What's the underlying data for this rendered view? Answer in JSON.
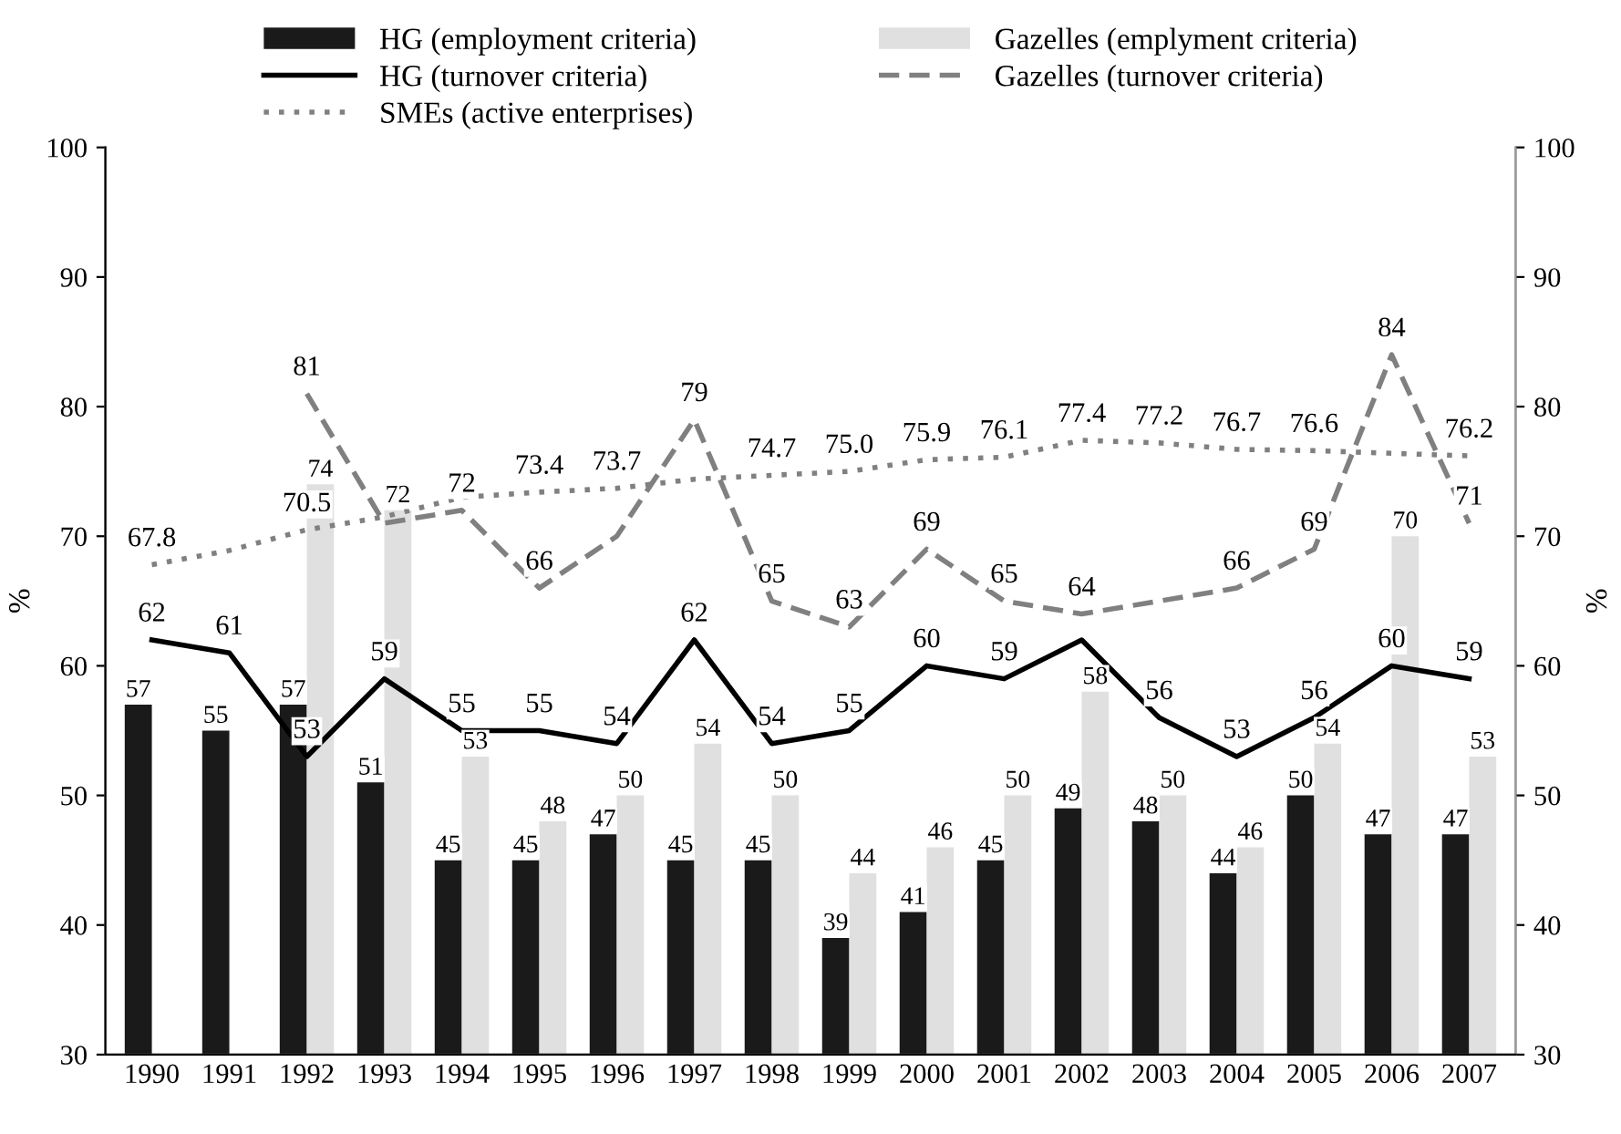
{
  "chart_data": {
    "type": "bar",
    "categories": [
      "1990",
      "1991",
      "1992",
      "1993",
      "1994",
      "1995",
      "1996",
      "1997",
      "1998",
      "1999",
      "2000",
      "2001",
      "2002",
      "2003",
      "2004",
      "2005",
      "2006",
      "2007"
    ],
    "series": [
      {
        "name": "HG (employment criteria)",
        "color": "#1a1a1a",
        "values": [
          57,
          55,
          57,
          51,
          45,
          45,
          47,
          45,
          45,
          39,
          41,
          45,
          49,
          48,
          44,
          50,
          47,
          47
        ],
        "value_labels": [
          "57",
          "55",
          "57",
          "51",
          "45",
          "45",
          "47",
          "45",
          "45",
          "39",
          "41",
          "45",
          "49",
          "48",
          "44",
          "50",
          "47",
          "47"
        ]
      },
      {
        "name": "Gazelles (emplyment criteria)",
        "color": "#e0e0e0",
        "values": [
          null,
          null,
          74,
          72,
          53,
          48,
          50,
          54,
          50,
          44,
          46,
          50,
          58,
          50,
          46,
          54,
          70,
          53
        ],
        "value_labels": [
          null,
          null,
          "74",
          "72",
          "53",
          "48",
          "50",
          "54",
          "50",
          "44",
          "46",
          "50",
          "58",
          "50",
          "46",
          "54",
          "70",
          "53"
        ]
      },
      {
        "name": "HG (turnover criteria)",
        "type": "line",
        "color": "#000000",
        "line_style": "solid",
        "values": [
          62,
          61,
          53,
          59,
          55,
          55,
          54,
          62,
          54,
          55,
          60,
          59,
          62,
          56,
          53,
          56,
          60,
          59
        ],
        "value_labels": [
          "62",
          "61",
          "53",
          "59",
          "55",
          "55",
          "54",
          "62",
          "54",
          "55",
          "60",
          "59",
          null,
          "56",
          "53",
          "56",
          "60",
          "59"
        ]
      },
      {
        "name": "Gazelles (turnover criteria)",
        "type": "line",
        "color": "#808080",
        "line_style": "dashed",
        "values": [
          null,
          null,
          81,
          71,
          72,
          66,
          70,
          79,
          65,
          63,
          69,
          65,
          64,
          65,
          66,
          69,
          84,
          71
        ],
        "value_labels": [
          null,
          null,
          "81",
          null,
          "72",
          "66",
          null,
          "79",
          "65",
          "63",
          "69",
          "65",
          "64",
          null,
          "66",
          "69",
          "84",
          "71"
        ]
      },
      {
        "name": "SMEs (active enterprises)",
        "type": "line",
        "color": "#808080",
        "line_style": "dotted",
        "values": [
          67.8,
          68.9,
          70.5,
          71.5,
          73.0,
          73.4,
          73.7,
          74.4,
          74.7,
          75.0,
          75.9,
          76.1,
          77.4,
          77.2,
          76.7,
          76.6,
          76.4,
          76.2
        ],
        "value_labels": [
          "67.8",
          null,
          "70.5",
          null,
          null,
          "73.4",
          "73.7",
          null,
          "74.7",
          "75.0",
          "75.9",
          "76.1",
          "77.4",
          "77.2",
          "76.7",
          "76.6",
          null,
          "76.2"
        ]
      }
    ],
    "ylabel": "%",
    "y2label": "%",
    "ylim": [
      30,
      100
    ],
    "yticks": [
      30,
      40,
      50,
      60,
      70,
      80,
      90,
      100
    ],
    "y2lim": [
      30,
      100
    ],
    "y2ticks": [
      30,
      40,
      50,
      60,
      70,
      80,
      90,
      100
    ],
    "grid": false,
    "legend": "top"
  }
}
